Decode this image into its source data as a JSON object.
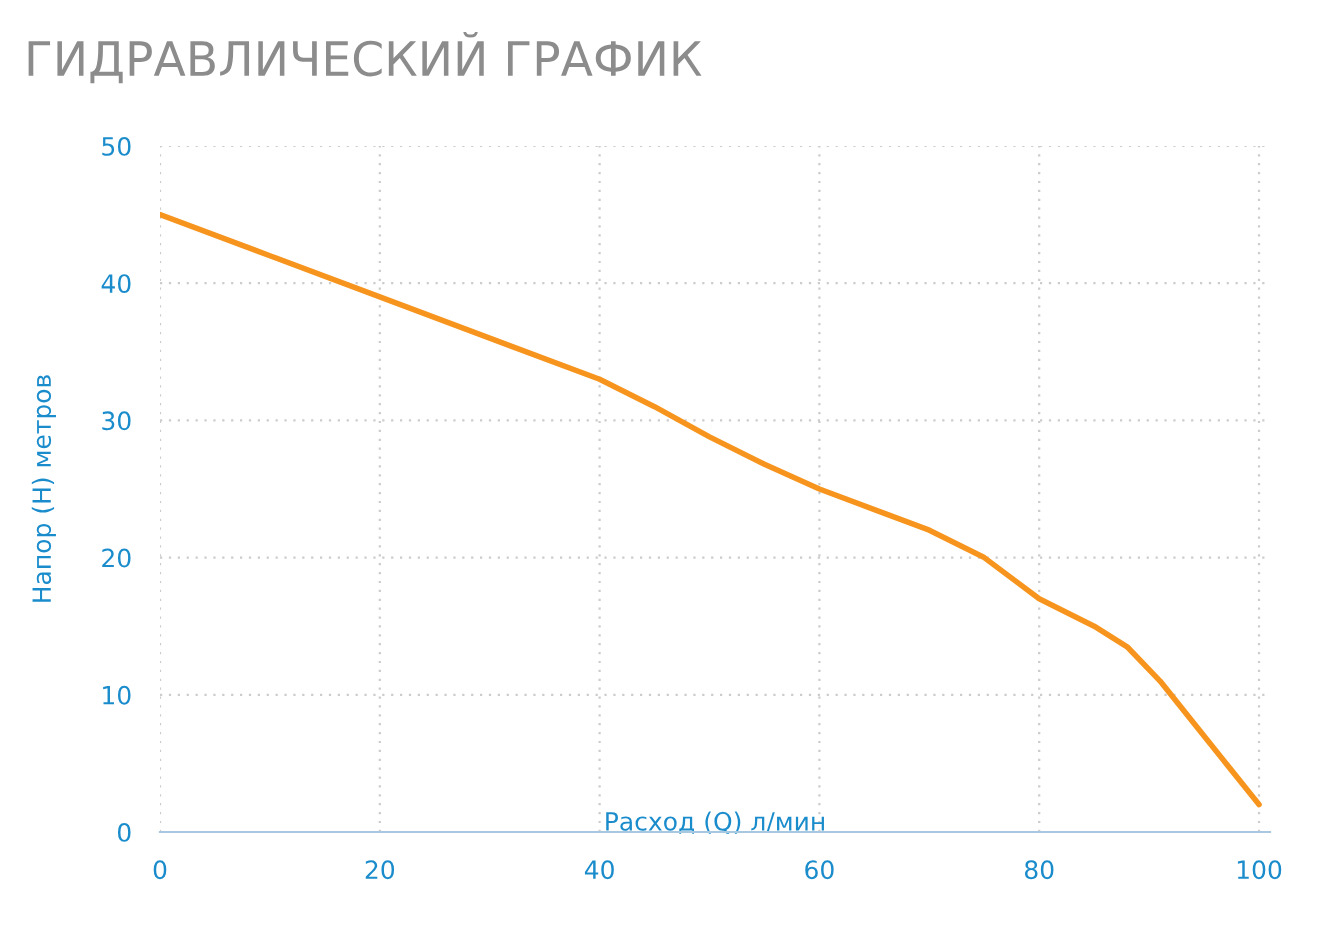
{
  "chart_data": {
    "type": "line",
    "title": "ГИДРАВЛИЧЕСКИЙ ГРАФИК",
    "xlabel": "Расход (Q) л/мин",
    "ylabel": "Напор (H) метров",
    "x": [
      0,
      10,
      20,
      30,
      40,
      45,
      50,
      55,
      60,
      65,
      70,
      75,
      80,
      85,
      88,
      91,
      94,
      97,
      100
    ],
    "series": [
      {
        "color": "#f7941d",
        "values": [
          45,
          42,
          39,
          36,
          33,
          31,
          28.8,
          26.8,
          25,
          23.5,
          22,
          20,
          17,
          15,
          13.5,
          11,
          8,
          5,
          2
        ]
      }
    ],
    "xlim": [
      0,
      101
    ],
    "ylim": [
      0,
      50
    ],
    "xticks": [
      0,
      20,
      40,
      60,
      80,
      100
    ],
    "yticks": [
      0,
      10,
      20,
      30,
      40,
      50
    ],
    "grid": true,
    "legend": false,
    "marker": "none",
    "line_style": "solid"
  }
}
